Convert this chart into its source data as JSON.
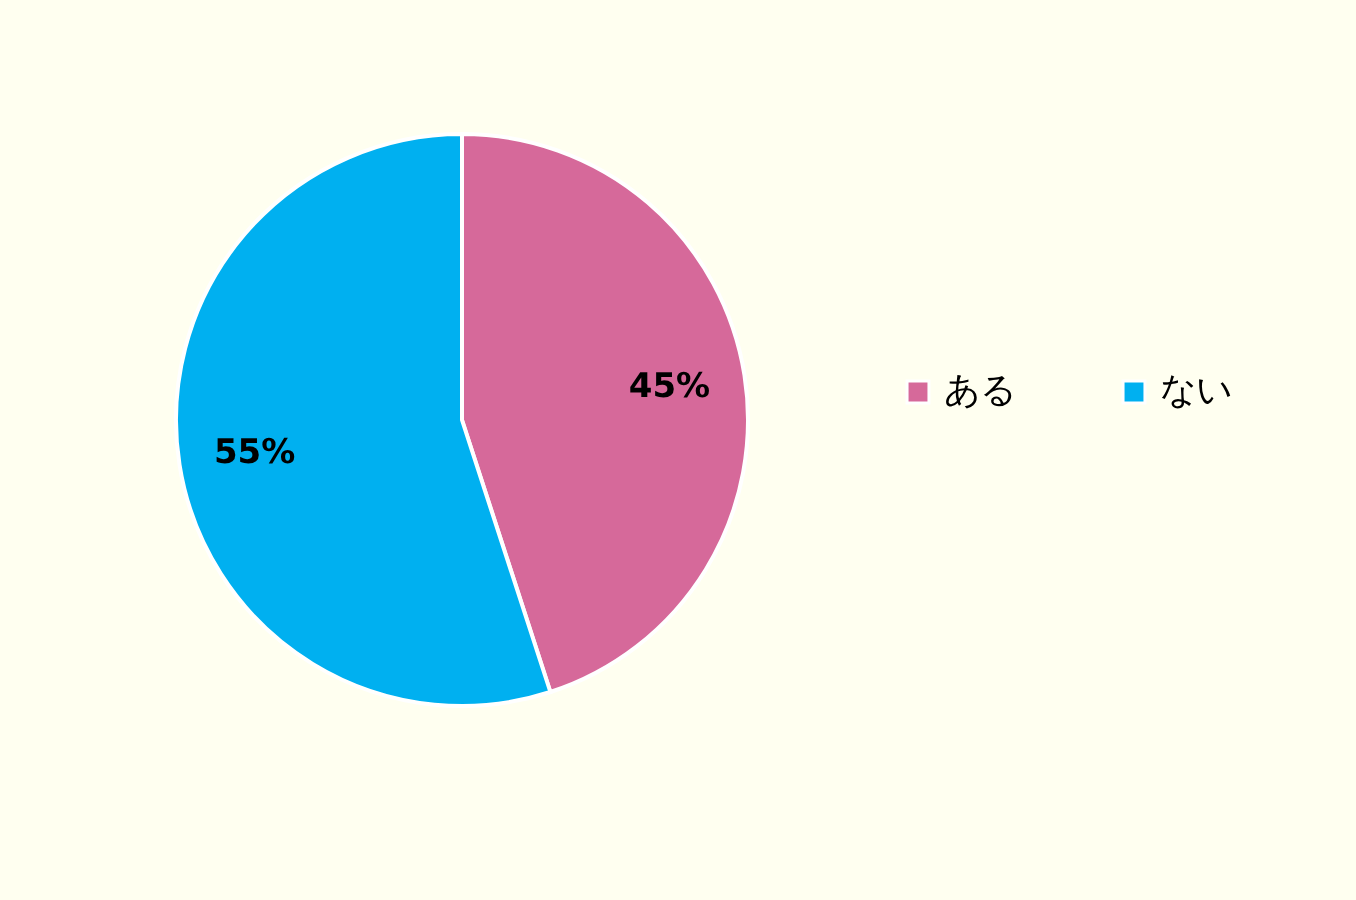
{
  "chart_data": {
    "type": "pie",
    "categories": [
      "ある",
      "ない"
    ],
    "values": [
      45,
      55
    ],
    "colors": [
      "#d6699a",
      "#00b0f0"
    ],
    "value_labels": [
      "45%",
      "55%"
    ],
    "legend": "right"
  }
}
